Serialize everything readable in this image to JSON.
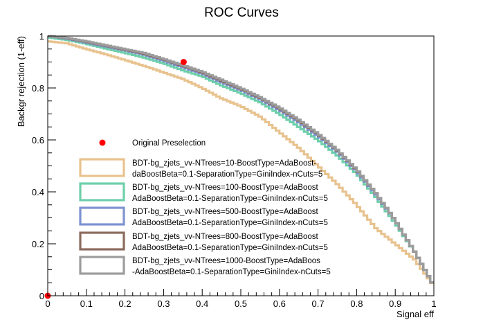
{
  "chart_data": {
    "type": "line",
    "title": "ROC Curves",
    "xlabel": "Signal eff",
    "ylabel": "Backgr rejection (1-eff)",
    "xlim": [
      0,
      1
    ],
    "ylim": [
      0,
      1
    ],
    "x_ticks": [
      "0",
      "0.1",
      "0.2",
      "0.3",
      "0.4",
      "0.5",
      "0.6",
      "0.7",
      "0.8",
      "0.9",
      "1"
    ],
    "y_ticks": [
      "0",
      "0.2",
      "0.4",
      "0.6",
      "0.8",
      "1"
    ],
    "grid": false,
    "legend_position": "lower-left",
    "points": [
      {
        "name": "Original Preselection",
        "color": "#ff0000",
        "x": [
          0.352,
          0.0
        ],
        "y": [
          0.9,
          0.0
        ]
      }
    ],
    "series": [
      {
        "name": "BDT-bg_zjets_vv-NTrees=10-BoostType=AdaBoost-daBoostBeta=0.1-SeparationType=GiniIndex-nCuts=5",
        "legend_lines": [
          "BDT-bg_zjets_vv-NTrees=10-BoostType=AdaBoost-",
          "daBoostBeta=0.1-SeparationType=GiniIndex-nCuts=5"
        ],
        "color": "#e8c28e",
        "x": [
          0,
          0.05,
          0.1,
          0.15,
          0.2,
          0.25,
          0.3,
          0.35,
          0.4,
          0.45,
          0.5,
          0.55,
          0.6,
          0.65,
          0.7,
          0.75,
          0.8,
          0.85,
          0.9,
          0.95,
          1.0
        ],
        "y": [
          0.98,
          0.972,
          0.95,
          0.93,
          0.908,
          0.885,
          0.86,
          0.835,
          0.8,
          0.76,
          0.73,
          0.69,
          0.63,
          0.57,
          0.5,
          0.43,
          0.35,
          0.26,
          0.2,
          0.14,
          0.04
        ]
      },
      {
        "name": "BDT-bg_zjets_vv-NTrees=100-BoostType=AdaBoostAdaBoostBeta=0.1-SeparationType=GiniIndex-nCuts=5",
        "legend_lines": [
          "BDT-bg_zjets_vv-NTrees=100-BoostType=AdaBoost",
          "AdaBoostBeta=0.1-SeparationType=GiniIndex-nCuts=5"
        ],
        "color": "#6dcfaa",
        "x": [
          0,
          0.05,
          0.1,
          0.15,
          0.2,
          0.25,
          0.3,
          0.35,
          0.4,
          0.45,
          0.5,
          0.55,
          0.6,
          0.65,
          0.7,
          0.75,
          0.8,
          0.85,
          0.9,
          0.95,
          1.0
        ],
        "y": [
          0.995,
          0.985,
          0.97,
          0.952,
          0.935,
          0.917,
          0.895,
          0.868,
          0.845,
          0.81,
          0.78,
          0.745,
          0.7,
          0.65,
          0.6,
          0.54,
          0.47,
          0.38,
          0.28,
          0.17,
          0.04
        ]
      },
      {
        "name": "BDT-bg_zjets_vv-NTrees=500-BoostType=AdaBoostAdaBoostBeta=0.1-SeparationType=GiniIndex-nCuts=5",
        "legend_lines": [
          "BDT-bg_zjets_vv-NTrees=500-BoostType=AdaBoost",
          "AdaBoostBeta=0.1-SeparationType=GiniIndex-nCuts=5"
        ],
        "color": "#7d92d0",
        "x": [
          0,
          0.05,
          0.1,
          0.15,
          0.2,
          0.25,
          0.3,
          0.35,
          0.4,
          0.45,
          0.5,
          0.55,
          0.6,
          0.65,
          0.7,
          0.75,
          0.8,
          0.85,
          0.9,
          0.95,
          1.0
        ],
        "y": [
          1.0,
          0.99,
          0.975,
          0.96,
          0.945,
          0.928,
          0.905,
          0.88,
          0.855,
          0.822,
          0.792,
          0.757,
          0.715,
          0.668,
          0.615,
          0.555,
          0.48,
          0.39,
          0.29,
          0.17,
          0.04
        ]
      },
      {
        "name": "BDT-bg_zjets_vv-NTrees=800-BoostType=AdaBoostAdaBoostBeta=0.1-SeparationType=GiniIndex-nCuts=5",
        "legend_lines": [
          "BDT-bg_zjets_vv-NTrees=800-BoostType=AdaBoost",
          "AdaBoostBeta=0.1-SeparationType=GiniIndex-nCuts=5"
        ],
        "color": "#8b6a5e",
        "x": [
          0,
          0.05,
          0.1,
          0.15,
          0.2,
          0.25,
          0.3,
          0.35,
          0.4,
          0.45,
          0.5,
          0.55,
          0.6,
          0.65,
          0.7,
          0.75,
          0.8,
          0.85,
          0.9,
          0.95,
          1.0
        ],
        "y": [
          1.0,
          0.992,
          0.978,
          0.963,
          0.948,
          0.932,
          0.91,
          0.885,
          0.86,
          0.828,
          0.797,
          0.762,
          0.722,
          0.675,
          0.622,
          0.56,
          0.485,
          0.395,
          0.29,
          0.17,
          0.04
        ]
      },
      {
        "name": "BDT-bg_zjets_vv-NTrees=1000-BoostType=AdaBoos-AdaBoostBeta=0.1-SeparationType=GiniIndex-nCuts=5",
        "legend_lines": [
          "BDT-bg_zjets_vv-NTrees=1000-BoostType=AdaBoos",
          "-AdaBoostBeta=0.1-SeparationType=GiniIndex-nCuts=5"
        ],
        "color": "#9c9c9c",
        "x": [
          0,
          0.05,
          0.1,
          0.15,
          0.2,
          0.25,
          0.3,
          0.35,
          0.4,
          0.45,
          0.5,
          0.55,
          0.6,
          0.65,
          0.7,
          0.75,
          0.8,
          0.85,
          0.9,
          0.95,
          1.0
        ],
        "y": [
          1.0,
          0.993,
          0.98,
          0.965,
          0.95,
          0.935,
          0.912,
          0.888,
          0.863,
          0.832,
          0.8,
          0.765,
          0.725,
          0.678,
          0.625,
          0.562,
          0.487,
          0.395,
          0.29,
          0.17,
          0.04
        ]
      }
    ]
  }
}
